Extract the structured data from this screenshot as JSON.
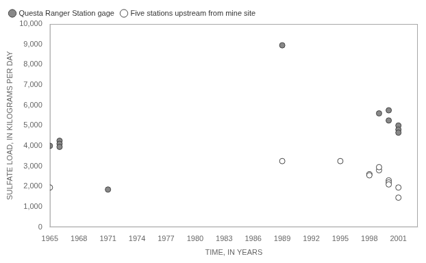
{
  "chart_data": {
    "type": "scatter",
    "xlabel": "TIME, IN YEARS",
    "ylabel": "SULFATE LOAD, IN KILOGRAMS PER DAY",
    "xlim": [
      1965,
      2003
    ],
    "ylim": [
      0,
      10000
    ],
    "xticks": [
      1965,
      1968,
      1971,
      1974,
      1977,
      1980,
      1983,
      1986,
      1989,
      1992,
      1995,
      1998,
      2001
    ],
    "yticks": [
      0,
      {
        "value": 1000,
        "label": "1,000"
      },
      {
        "value": 2000,
        "label": "2,000"
      },
      {
        "value": 3000,
        "label": "3,000"
      },
      {
        "value": 4000,
        "label": "4,000"
      },
      {
        "value": 5000,
        "label": "5,000"
      },
      {
        "value": 6000,
        "label": "6,000"
      },
      {
        "value": 7000,
        "label": "7,000"
      },
      {
        "value": 8000,
        "label": "8,000"
      },
      {
        "value": 9000,
        "label": "9,000"
      },
      {
        "value": 10000,
        "label": "10,000"
      }
    ],
    "grid": false,
    "legend": "upper left",
    "series": [
      {
        "name": "Questa Ranger Station gage",
        "color": "#888888",
        "marker": "circle",
        "x": [
          1965,
          1966,
          1966,
          1966,
          1971,
          1989,
          1999,
          2000,
          2000,
          2001,
          2001,
          2001
        ],
        "values": [
          4000,
          4250,
          4100,
          3950,
          1850,
          8950,
          5600,
          5750,
          5250,
          5000,
          4800,
          4650
        ]
      },
      {
        "name": "Five stations upstream from mine site",
        "color": "#ffffff",
        "marker": "circle",
        "x": [
          1965,
          1989,
          1995,
          1998,
          1998,
          1999,
          1999,
          2000,
          2000,
          2000,
          2001,
          2001
        ],
        "values": [
          1950,
          3250,
          3250,
          2600,
          2550,
          2800,
          2950,
          2300,
          2200,
          2100,
          1950,
          1450
        ]
      }
    ]
  }
}
